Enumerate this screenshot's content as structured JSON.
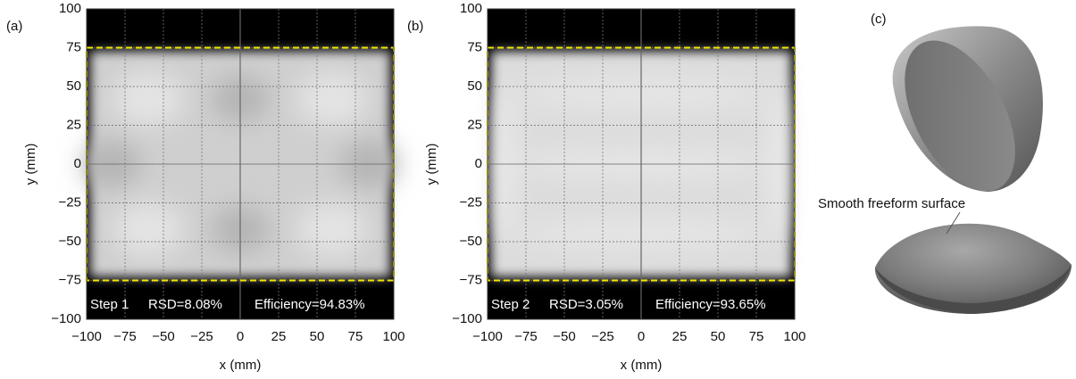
{
  "chart_data": [
    {
      "type": "irradiance-map",
      "panel_label": "(a)",
      "xlabel": "x (mm)",
      "ylabel": "y (mm)",
      "xlim": [
        -100,
        100
      ],
      "ylim": [
        -100,
        100
      ],
      "xticks": [
        {
          "value": -100,
          "label": "−100"
        },
        {
          "value": -75,
          "label": "−75"
        },
        {
          "value": -50,
          "label": "−50"
        },
        {
          "value": -25,
          "label": "−25"
        },
        0,
        25,
        50,
        75,
        100
      ],
      "yticks": [
        {
          "value": -100,
          "label": "−100"
        },
        {
          "value": -75,
          "label": "−75"
        },
        {
          "value": -50,
          "label": "−50"
        },
        {
          "value": -25,
          "label": "−25"
        },
        0,
        25,
        50,
        75,
        100
      ],
      "grid": true,
      "target": {
        "xlim": [
          -100,
          100
        ],
        "ylim": [
          -75,
          75
        ],
        "color": "#f2e600"
      },
      "annotations": [
        "Step 1",
        "RSD=8.08%",
        "Efficiency=94.83%"
      ]
    },
    {
      "type": "irradiance-map",
      "panel_label": "(b)",
      "xlabel": "x (mm)",
      "ylabel": "y (mm)",
      "xlim": [
        -100,
        100
      ],
      "ylim": [
        -100,
        100
      ],
      "xticks": [
        {
          "value": -100,
          "label": "−100"
        },
        {
          "value": -75,
          "label": "−75"
        },
        {
          "value": -50,
          "label": "−50"
        },
        {
          "value": -25,
          "label": "−25"
        },
        0,
        25,
        50,
        75,
        100
      ],
      "yticks": [
        {
          "value": -100,
          "label": "−100"
        },
        {
          "value": -75,
          "label": "−75"
        },
        {
          "value": -50,
          "label": "−50"
        },
        {
          "value": -25,
          "label": "−25"
        },
        0,
        25,
        50,
        75,
        100
      ],
      "grid": true,
      "target": {
        "xlim": [
          -100,
          100
        ],
        "ylim": [
          -75,
          75
        ],
        "color": "#f2e600"
      },
      "annotations": [
        "Step 2",
        "RSD=3.05%",
        "Efficiency=93.65%"
      ]
    }
  ],
  "figure_c": {
    "label": "(c)",
    "annotation": "Smooth freeform surface"
  }
}
